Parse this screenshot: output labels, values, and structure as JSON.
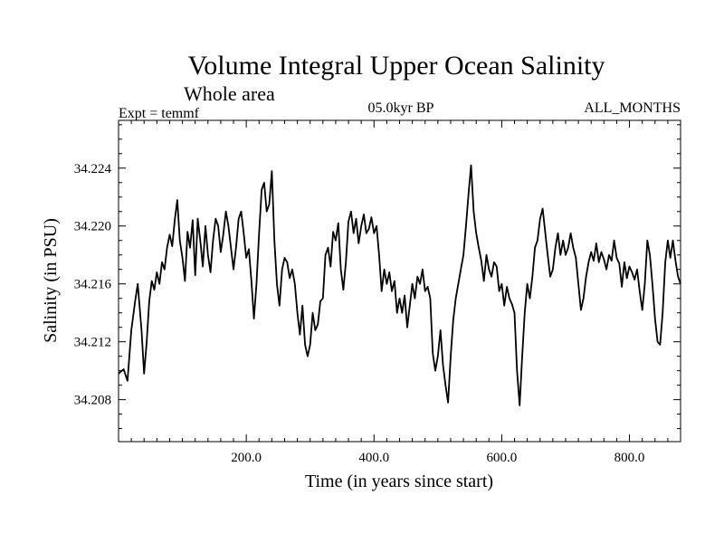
{
  "chart_data": {
    "type": "line",
    "title": "Volume Integral Upper Ocean Salinity",
    "subtitle": "Whole area",
    "experiment_label": "Expt = temmf",
    "period_label": "05.0kyr BP",
    "months_label": "ALL_MONTHS",
    "xlabel": "Time (in years since start)",
    "ylabel": "Salinity (in PSU)",
    "xlim": [
      0,
      880
    ],
    "ylim": [
      34.2051,
      34.2273
    ],
    "x_ticks": [
      200,
      400,
      600,
      800
    ],
    "x_tick_labels": [
      "200.0",
      "400.0",
      "600.0",
      "800.0"
    ],
    "y_ticks": [
      34.208,
      34.212,
      34.216,
      34.22,
      34.224
    ],
    "y_tick_labels": [
      "34.208",
      "34.212",
      "34.216",
      "34.220",
      "34.224"
    ],
    "grid": false,
    "series": [
      {
        "name": "Salinity",
        "color": "#000000",
        "x": [
          0,
          8,
          14,
          20,
          26,
          30,
          36,
          40,
          44,
          48,
          52,
          56,
          60,
          64,
          68,
          72,
          76,
          80,
          84,
          88,
          92,
          96,
          100,
          104,
          108,
          112,
          116,
          120,
          124,
          128,
          132,
          136,
          140,
          144,
          148,
          152,
          156,
          160,
          164,
          168,
          172,
          176,
          180,
          184,
          188,
          192,
          196,
          200,
          204,
          208,
          212,
          216,
          220,
          224,
          228,
          232,
          236,
          240,
          244,
          248,
          252,
          256,
          260,
          264,
          268,
          272,
          276,
          280,
          284,
          288,
          292,
          296,
          300,
          304,
          308,
          312,
          316,
          320,
          324,
          328,
          332,
          336,
          340,
          344,
          348,
          352,
          356,
          360,
          364,
          368,
          372,
          376,
          380,
          384,
          388,
          392,
          396,
          400,
          404,
          408,
          412,
          416,
          420,
          424,
          428,
          432,
          436,
          440,
          444,
          448,
          452,
          456,
          460,
          464,
          468,
          472,
          476,
          480,
          484,
          488,
          492,
          496,
          500,
          504,
          508,
          512,
          516,
          520,
          524,
          528,
          532,
          536,
          540,
          544,
          548,
          552,
          556,
          560,
          564,
          568,
          572,
          576,
          580,
          584,
          588,
          592,
          596,
          600,
          604,
          608,
          612,
          616,
          620,
          624,
          628,
          632,
          636,
          640,
          644,
          648,
          652,
          656,
          660,
          664,
          668,
          672,
          676,
          680,
          684,
          688,
          692,
          696,
          700,
          704,
          708,
          712,
          716,
          720,
          724,
          728,
          732,
          736,
          740,
          744,
          748,
          752,
          756,
          760,
          764,
          768,
          772,
          776,
          780,
          784,
          788,
          792,
          796,
          800,
          804,
          808,
          812,
          816,
          820,
          824,
          828,
          832,
          836,
          840,
          844,
          848,
          852,
          856,
          860,
          864,
          868,
          872,
          876,
          880
        ],
        "values": [
          34.2098,
          34.2101,
          34.2093,
          34.2128,
          34.2148,
          34.216,
          34.2128,
          34.2098,
          34.212,
          34.2148,
          34.2162,
          34.2156,
          34.2168,
          34.216,
          34.2175,
          34.217,
          34.2185,
          34.2194,
          34.2186,
          34.2204,
          34.2218,
          34.219,
          34.2178,
          34.2162,
          34.2196,
          34.2185,
          34.2204,
          34.2166,
          34.2205,
          34.219,
          34.2172,
          34.22,
          34.218,
          34.2168,
          34.219,
          34.2205,
          34.22,
          34.2182,
          34.2194,
          34.221,
          34.22,
          34.2185,
          34.217,
          34.2185,
          34.2205,
          34.221,
          34.2195,
          34.2178,
          34.2184,
          34.2162,
          34.2136,
          34.216,
          34.2195,
          34.2225,
          34.223,
          34.221,
          34.2215,
          34.2238,
          34.219,
          34.216,
          34.2145,
          34.217,
          34.2178,
          34.2175,
          34.2164,
          34.217,
          34.216,
          34.214,
          34.2125,
          34.2145,
          34.2118,
          34.211,
          34.2118,
          34.214,
          34.2128,
          34.2132,
          34.2148,
          34.215,
          34.218,
          34.2185,
          34.2172,
          34.2196,
          34.219,
          34.2202,
          34.217,
          34.2156,
          34.2175,
          34.2203,
          34.221,
          34.2195,
          34.2205,
          34.2188,
          34.22,
          34.2208,
          34.2195,
          34.2198,
          34.2206,
          34.2195,
          34.22,
          34.218,
          34.2155,
          34.217,
          34.216,
          34.2168,
          34.2155,
          34.2162,
          34.214,
          34.215,
          34.214,
          34.2152,
          34.213,
          34.2145,
          34.216,
          34.215,
          34.2165,
          34.216,
          34.217,
          34.2155,
          34.2158,
          34.215,
          34.2112,
          34.21,
          34.211,
          34.2128,
          34.2104,
          34.209,
          34.2078,
          34.211,
          34.2135,
          34.215,
          34.216,
          34.217,
          34.218,
          34.22,
          34.2222,
          34.2242,
          34.221,
          34.2195,
          34.2185,
          34.2176,
          34.2162,
          34.218,
          34.217,
          34.2165,
          34.2175,
          34.2172,
          34.2155,
          34.216,
          34.2145,
          34.2158,
          34.215,
          34.2146,
          34.214,
          34.21,
          34.2076,
          34.211,
          34.214,
          34.216,
          34.215,
          34.2165,
          34.2185,
          34.219,
          34.2205,
          34.2212,
          34.2196,
          34.218,
          34.2165,
          34.217,
          34.2185,
          34.2195,
          34.218,
          34.219,
          34.218,
          34.2185,
          34.2195,
          34.2185,
          34.2178,
          34.216,
          34.2142,
          34.215,
          34.2165,
          34.2175,
          34.2182,
          34.2176,
          34.2188,
          34.2175,
          34.2182,
          34.2177,
          34.217,
          34.218,
          34.2176,
          34.219,
          34.2178,
          34.2174,
          34.2158,
          34.2175,
          34.2164,
          34.2172,
          34.2168,
          34.2163,
          34.217,
          34.2155,
          34.2142,
          34.216,
          34.219,
          34.218,
          34.216,
          34.2136,
          34.212,
          34.2118,
          34.214,
          34.2175,
          34.219,
          34.2178,
          34.219,
          34.2176,
          34.2165,
          34.216
        ]
      }
    ]
  }
}
